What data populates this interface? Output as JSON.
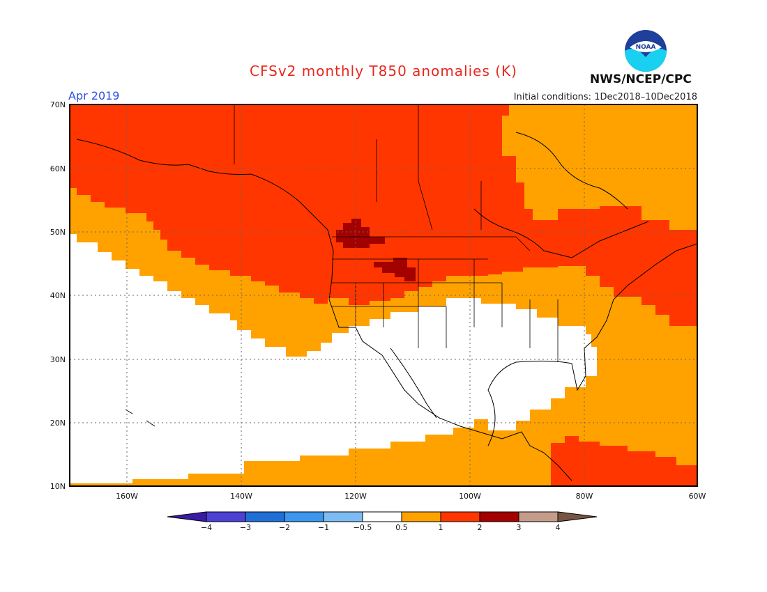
{
  "header": {
    "title": "CFSv2 monthly T850 anomalies (K)",
    "period": "Apr 2019",
    "initial_conditions": "Initial conditions: 1Dec2018–10Dec2018",
    "agency": "NWS/NCEP/CPC",
    "logo_text": "NOAA"
  },
  "colors": {
    "title": "#e8281e",
    "period": "#2a4fe0",
    "anom_ge_0_5": "#ffa200",
    "anom_ge_1": "#ff3600",
    "anom_ge_2": "#a30000",
    "neutral": "#ffffff",
    "logo_blue": "#1e3f9a",
    "logo_cyan": "#19d0f0"
  },
  "map": {
    "lat_ticks": [
      "70N",
      "60N",
      "50N",
      "40N",
      "30N",
      "20N",
      "10N"
    ],
    "lon_ticks": [
      "160W",
      "140W",
      "120W",
      "100W",
      "80W",
      "60W"
    ]
  },
  "colorbar": {
    "tick_labels": [
      "−4",
      "−3",
      "−2",
      "−1",
      "−0.5",
      "0.5",
      "1",
      "2",
      "3",
      "4"
    ],
    "colors": [
      "#3b1aa6",
      "#4b41d2",
      "#1f6fd6",
      "#3b96ee",
      "#7dbcf2",
      "#ffffff",
      "#ffa200",
      "#ff3600",
      "#a30000",
      "#c59c8a",
      "#7a5443"
    ]
  }
}
